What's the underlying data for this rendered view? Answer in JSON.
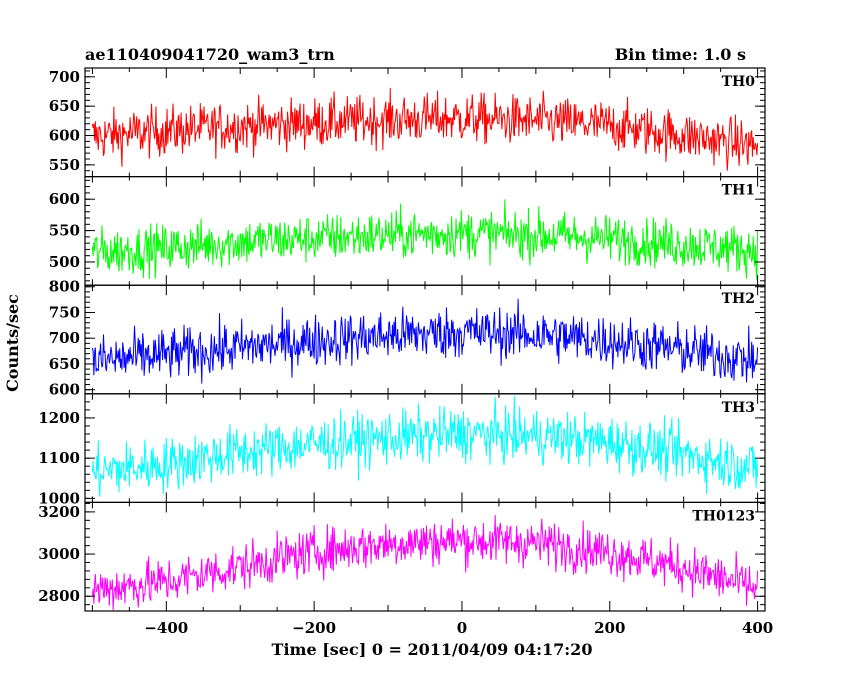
{
  "header": {
    "left_title": "ae110409041720_wam3_trn",
    "right_title": "Bin time: 1.0 s"
  },
  "chart_data": {
    "type": "line",
    "xlabel": "Time [sec] 0 = 2011/04/09 04:17:20",
    "ylabel": "Counts/sec",
    "xlim": [
      -510,
      410
    ],
    "xticks": [
      -400,
      -200,
      0,
      200,
      400
    ],
    "xtick_labels": [
      "−400",
      "−200",
      "0",
      "200",
      "400"
    ],
    "series": [
      {
        "name": "TH0",
        "color": "#ff0000",
        "ylim": [
          530,
          715
        ],
        "yticks": [
          550,
          600,
          650,
          700
        ],
        "ytick_labels": [
          "550",
          "600",
          "650",
          "700"
        ],
        "x": [
          -500,
          -400,
          -300,
          -200,
          -100,
          0,
          100,
          200,
          300,
          400
        ],
        "y": [
          598,
          608,
          616,
          622,
          627,
          629,
          625,
          617,
          600,
          582
        ],
        "noise": 21
      },
      {
        "name": "TH1",
        "color": "#00ff00",
        "ylim": [
          463,
          636
        ],
        "yticks": [
          500,
          550,
          600
        ],
        "ytick_labels": [
          "500",
          "550",
          "600"
        ],
        "x": [
          -500,
          -400,
          -300,
          -200,
          -100,
          0,
          100,
          200,
          300,
          400
        ],
        "y": [
          515,
          522,
          532,
          538,
          543,
          546,
          543,
          537,
          528,
          518
        ],
        "noise": 19
      },
      {
        "name": "TH2",
        "color": "#0000ff",
        "ylim": [
          592,
          803
        ],
        "yticks": [
          600,
          650,
          700,
          750,
          800
        ],
        "ytick_labels": [
          "600",
          "650",
          "700",
          "750",
          "800"
        ],
        "x": [
          -500,
          -400,
          -300,
          -200,
          -100,
          0,
          100,
          200,
          300,
          400
        ],
        "y": [
          655,
          668,
          682,
          695,
          705,
          712,
          707,
          695,
          677,
          656
        ],
        "noise": 25
      },
      {
        "name": "TH3",
        "color": "#00ffff",
        "ylim": [
          990,
          1260
        ],
        "yticks": [
          1000,
          1100,
          1200
        ],
        "ytick_labels": [
          "1000",
          "1100",
          "1200"
        ],
        "x": [
          -500,
          -400,
          -300,
          -200,
          -100,
          0,
          100,
          200,
          300,
          400
        ],
        "y": [
          1065,
          1085,
          1115,
          1135,
          1150,
          1160,
          1155,
          1140,
          1110,
          1075
        ],
        "noise": 33
      },
      {
        "name": "TH0123",
        "color": "#ff00ff",
        "ylim": [
          2730,
          3245
        ],
        "yticks": [
          2800,
          3000,
          3200
        ],
        "ytick_labels": [
          "2800",
          "3000",
          "3200"
        ],
        "x": [
          -500,
          -400,
          -300,
          -200,
          -100,
          0,
          100,
          200,
          300,
          400
        ],
        "y": [
          2830,
          2870,
          2940,
          3010,
          3050,
          3065,
          3055,
          3010,
          2935,
          2835
        ],
        "noise": 55
      }
    ]
  }
}
